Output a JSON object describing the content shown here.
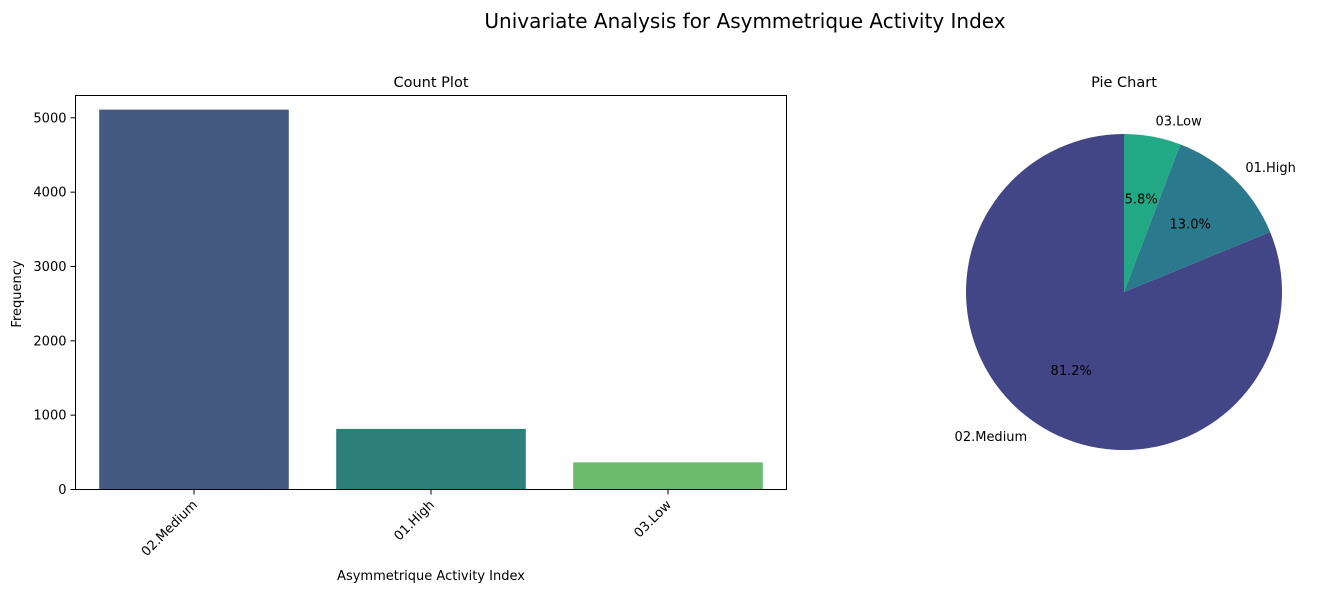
{
  "suptitle": "Univariate Analysis for Asymmetrique Activity Index",
  "colors": {
    "medium_bar": "#455a80",
    "high_bar": "#2e7f7a",
    "low_bar": "#6abb6b",
    "medium_slice": "#424586",
    "high_slice": "#2b798c",
    "low_slice": "#22a884"
  },
  "chart_data": [
    {
      "type": "bar",
      "title": "Count Plot",
      "xlabel": "Asymmetrique Activity Index",
      "ylabel": "Frequency",
      "categories": [
        "02.Medium",
        "01.High",
        "03.Low"
      ],
      "values": [
        5110,
        815,
        365
      ],
      "ylim": [
        0,
        5300
      ],
      "yticks": [
        "0",
        "1000",
        "2000",
        "3000",
        "4000",
        "5000"
      ],
      "grid": false
    },
    {
      "type": "pie",
      "title": "Pie Chart",
      "labels": [
        "02.Medium",
        "01.High",
        "03.Low"
      ],
      "values": [
        81.2,
        13.0,
        5.8
      ],
      "pct_labels": [
        "81.2%",
        "13.0%",
        "5.8%"
      ]
    }
  ]
}
